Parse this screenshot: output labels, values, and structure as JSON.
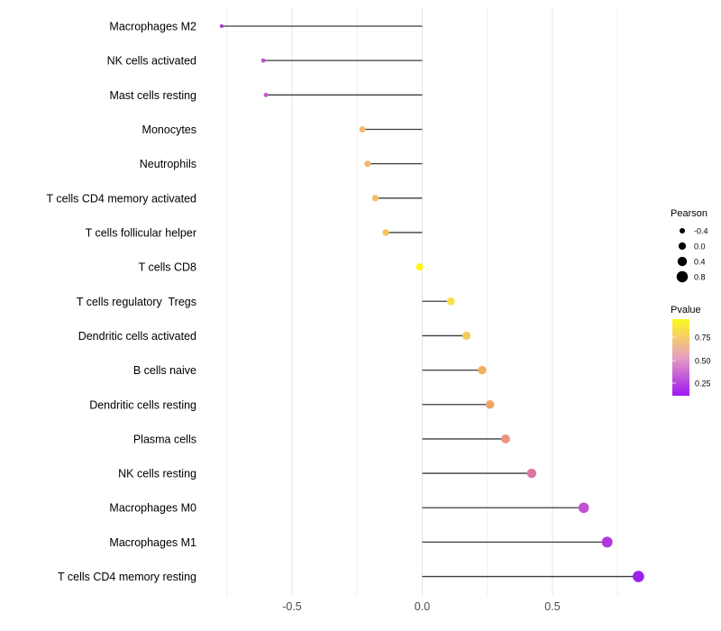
{
  "chart_data": {
    "type": "lollipop",
    "title": "",
    "xlabel": "",
    "ylabel": "",
    "x_axis": {
      "ticks": [
        {
          "value": -0.5,
          "label": "-0.5"
        },
        {
          "value": 0.0,
          "label": "0.0"
        },
        {
          "value": 0.5,
          "label": "0.5"
        }
      ],
      "gridlines_major": [
        -0.5,
        0.0,
        0.5
      ],
      "gridlines_minor": [
        -0.75,
        -0.25,
        0.25,
        0.75
      ],
      "xlim": [
        -0.85,
        0.93
      ],
      "grid": "on"
    },
    "categories": [
      "Macrophages M2",
      "NK cells activated",
      "Mast cells resting",
      "Monocytes",
      "Neutrophils",
      "T cells CD4 memory activated",
      "T cells follicular helper",
      "T cells CD8",
      "T cells regulatory  Tregs",
      "Dendritic cells activated",
      "B cells naive",
      "Dendritic cells resting",
      "Plasma cells",
      "NK cells resting",
      "Macrophages M0",
      "Macrophages M1",
      "T cells CD4 memory resting"
    ],
    "series": [
      {
        "name": "Pearson",
        "values": [
          -0.77,
          -0.61,
          -0.6,
          -0.23,
          -0.21,
          -0.18,
          -0.14,
          -0.01,
          0.11,
          0.17,
          0.23,
          0.26,
          0.32,
          0.42,
          0.62,
          0.71,
          0.83
        ]
      },
      {
        "name": "Pvalue_estimated_from_color",
        "values": [
          0.2,
          0.3,
          0.31,
          0.72,
          0.72,
          0.75,
          0.8,
          0.95,
          0.88,
          0.8,
          0.7,
          0.68,
          0.57,
          0.5,
          0.3,
          0.22,
          0.1
        ]
      }
    ],
    "point_colors": [
      "#A13BCE",
      "#BE5CC9",
      "#BF5FCA",
      "#F3B96E",
      "#F3BA6C",
      "#F3BF65",
      "#F4C75C",
      "#FBF519",
      "#F8E04B",
      "#F4CB58",
      "#F1AE63",
      "#F0A566",
      "#EB9480",
      "#DC76A1",
      "#C24FD2",
      "#B13ADC",
      "#9B20E9"
    ],
    "legend_size": {
      "title": "Pearson",
      "entries": [
        {
          "value": -0.4,
          "label": "-0.4"
        },
        {
          "value": 0.0,
          "label": "0.0"
        },
        {
          "value": 0.4,
          "label": "0.4"
        },
        {
          "value": 0.8,
          "label": "0.8"
        }
      ],
      "dot_color": "#000000",
      "legend_position": "right"
    },
    "legend_color": {
      "title": "Pvalue",
      "ticks": [
        {
          "label": "0.75"
        },
        {
          "label": "0.50"
        },
        {
          "label": "0.25"
        }
      ],
      "gradient_top_to_bottom": [
        "#FAF921",
        "#F5CB6D",
        "#E59FC2",
        "#C35BD9",
        "#9E17F0"
      ],
      "legend_position": "right"
    },
    "style": {
      "background": "#ffffff",
      "stem_color": "#3c3c3c",
      "grid_major_color": "#e4e4e4",
      "grid_minor_color": "#efefef"
    }
  }
}
